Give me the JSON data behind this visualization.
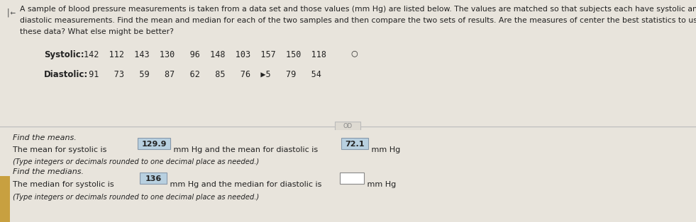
{
  "bg_color": "#e8e4dc",
  "top_bg": "#dedad2",
  "bottom_bg": "#e8e4dc",
  "tan_bar_color": "#c8a040",
  "header_line1": "A sample of blood pressure measurements is taken from a data set and those values (mm Hg) are listed below. The values are matched so that subjects each have systolic and",
  "header_line2": "diastolic measurements. Find the mean and median for each of the two samples and then compare the two sets of results. Are the measures of center the best statistics to use with",
  "header_line3": "these data? What else might be better?",
  "systolic_label": "Systolic:",
  "systolic_values": "142  112  143  130   96  148  103  157  150  118○",
  "diastolic_label": "Diastolic:",
  "diastolic_values": "91   73   59   87   62   85   76  ▶5   79   54",
  "find_means": "Find the means.",
  "mean_line_pre": "The mean for systolic is ",
  "mean_systolic": "129.9",
  "mean_line_mid": " mm Hg and the mean for diastolic is ",
  "mean_diastolic": "72.1",
  "mean_line_post": " mm Hg",
  "mean_note": "(Type integers or decimals rounded to one decimal place as needed.)",
  "find_medians": "Find the medians.",
  "median_line_pre": "The median for systolic is ",
  "median_systolic": "136",
  "median_line_mid": " mm Hg and the median for diastolic is ",
  "median_diastolic": "",
  "median_line_post": " mm Hg",
  "median_note": "(Type integers or decimals rounded to one decimal place as needed.)",
  "box_fill_blue": "#b8d0e0",
  "box_fill_white": "#ffffff",
  "box_edge": "#8899aa",
  "text_color": "#222222",
  "divider_color": "#bbbbbb",
  "arrow_color": "#555555",
  "fs_header": 7.8,
  "fs_body": 8.0,
  "fs_data": 8.5,
  "fs_label": 8.5
}
